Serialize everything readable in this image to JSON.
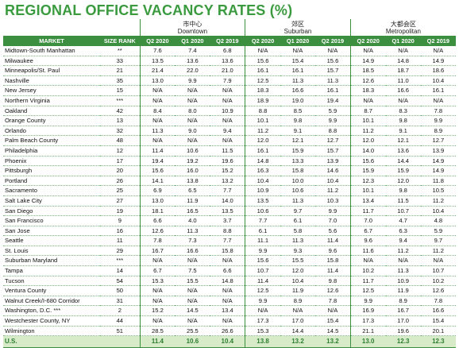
{
  "header": {
    "title": "REGIONAL OFFICE VACANCY RATES (%)"
  },
  "table": {
    "groups": [
      {
        "zh": "市中心",
        "en": "Downtown"
      },
      {
        "zh": "郊区",
        "en": "Suburban"
      },
      {
        "zh": "大都会区",
        "en": "Metropolitan"
      }
    ],
    "columns": [
      "MARKET",
      "SIZE RANK",
      "Q2 2020",
      "Q1 2020",
      "Q2 2019",
      "Q2 2020",
      "Q1 2020",
      "Q2 2019",
      "Q2 2020",
      "Q1 2020",
      "Q2 2019"
    ],
    "rows": [
      [
        "Midtown-South Manhattan",
        "**",
        "7.6",
        "7.4",
        "6.8",
        "N/A",
        "N/A",
        "N/A",
        "N/A",
        "N/A",
        "N/A"
      ],
      [
        "Milwaukee",
        "33",
        "13.5",
        "13.6",
        "13.6",
        "15.6",
        "15.4",
        "15.6",
        "14.9",
        "14.8",
        "14.9"
      ],
      [
        "Minneapolis/St. Paul",
        "21",
        "21.4",
        "22.0",
        "21.0",
        "16.1",
        "16.1",
        "15.7",
        "18.5",
        "18.7",
        "18.6"
      ],
      [
        "Nashville",
        "35",
        "13.0",
        "9.9",
        "7.9",
        "12.5",
        "11.3",
        "11.3",
        "12.6",
        "11.0",
        "10.4"
      ],
      [
        "New Jersey",
        "15",
        "N/A",
        "N/A",
        "N/A",
        "18.3",
        "16.6",
        "16.1",
        "18.3",
        "16.6",
        "16.1"
      ],
      [
        "Northern Virginia",
        "***",
        "N/A",
        "N/A",
        "N/A",
        "18.9",
        "19.0",
        "19.4",
        "N/A",
        "N/A",
        "N/A"
      ],
      [
        "Oakland",
        "42",
        "8.4",
        "8.0",
        "10.9",
        "8.8",
        "8.5",
        "5.9",
        "8.7",
        "8.3",
        "7.8"
      ],
      [
        "Orange County",
        "13",
        "N/A",
        "N/A",
        "N/A",
        "10.1",
        "9.8",
        "9.9",
        "10.1",
        "9.8",
        "9.9"
      ],
      [
        "Orlando",
        "32",
        "11.3",
        "9.0",
        "9.4",
        "11.2",
        "9.1",
        "8.8",
        "11.2",
        "9.1",
        "8.9"
      ],
      [
        "Palm Beach County",
        "48",
        "N/A",
        "N/A",
        "N/A",
        "12.0",
        "12.1",
        "12.7",
        "12.0",
        "12.1",
        "12.7"
      ],
      [
        "Philadelphia",
        "12",
        "11.4",
        "10.6",
        "11.5",
        "16.1",
        "15.9",
        "15.7",
        "14.0",
        "13.6",
        "13.9"
      ],
      [
        "Phoenix",
        "17",
        "19.4",
        "19.2",
        "19.6",
        "14.8",
        "13.3",
        "13.9",
        "15.6",
        "14.4",
        "14.9"
      ],
      [
        "Pittsburgh",
        "20",
        "15.6",
        "16.0",
        "15.2",
        "16.3",
        "15.8",
        "14.6",
        "15.9",
        "15.9",
        "14.9"
      ],
      [
        "Portland",
        "26",
        "14.1",
        "13.8",
        "13.2",
        "10.4",
        "10.0",
        "10.4",
        "12.3",
        "12.0",
        "11.8"
      ],
      [
        "Sacramento",
        "25",
        "6.9",
        "6.5",
        "7.7",
        "10.9",
        "10.6",
        "11.2",
        "10.1",
        "9.8",
        "10.5"
      ],
      [
        "Salt Lake City",
        "27",
        "13.0",
        "11.9",
        "14.0",
        "13.5",
        "11.3",
        "10.3",
        "13.4",
        "11.5",
        "11.2"
      ],
      [
        "San Diego",
        "19",
        "18.1",
        "16.5",
        "13.5",
        "10.6",
        "9.7",
        "9.9",
        "11.7",
        "10.7",
        "10.4"
      ],
      [
        "San Francisco",
        "9",
        "6.6",
        "4.0",
        "3.7",
        "7.7",
        "6.1",
        "7.0",
        "7.0",
        "4.7",
        "4.8"
      ],
      [
        "San Jose",
        "16",
        "12.6",
        "11.3",
        "8.8",
        "6.1",
        "5.8",
        "5.6",
        "6.7",
        "6.3",
        "5.9"
      ],
      [
        "Seattle",
        "11",
        "7.8",
        "7.3",
        "7.7",
        "11.1",
        "11.3",
        "11.4",
        "9.6",
        "9.4",
        "9.7"
      ],
      [
        "St. Louis",
        "29",
        "16.7",
        "16.6",
        "15.8",
        "9.9",
        "9.3",
        "9.6",
        "11.6",
        "11.2",
        "11.2"
      ],
      [
        "Suburban Maryland",
        "***",
        "N/A",
        "N/A",
        "N/A",
        "15.6",
        "15.5",
        "15.8",
        "N/A",
        "N/A",
        "N/A"
      ],
      [
        "Tampa",
        "14",
        "6.7",
        "7.5",
        "6.6",
        "10.7",
        "12.0",
        "11.4",
        "10.2",
        "11.3",
        "10.7"
      ],
      [
        "Tucson",
        "54",
        "15.3",
        "15.5",
        "14.8",
        "11.4",
        "10.4",
        "9.8",
        "11.7",
        "10.9",
        "10.2"
      ],
      [
        "Ventura County",
        "50",
        "N/A",
        "N/A",
        "N/A",
        "12.5",
        "11.9",
        "12.6",
        "12.5",
        "11.9",
        "12.6"
      ],
      [
        "Walnut Creek/I-680 Corridor",
        "31",
        "N/A",
        "N/A",
        "N/A",
        "9.9",
        "8.9",
        "7.8",
        "9.9",
        "8.9",
        "7.8"
      ],
      [
        "Washington, D.C. ***",
        "2",
        "15.2",
        "14.5",
        "13.4",
        "N/A",
        "N/A",
        "N/A",
        "16.9",
        "16.7",
        "16.6"
      ],
      [
        "Westchester County, NY",
        "44",
        "N/A",
        "N/A",
        "N/A",
        "17.3",
        "17.0",
        "15.4",
        "17.3",
        "17.0",
        "15.4"
      ],
      [
        "Wilmington",
        "51",
        "28.5",
        "25.5",
        "26.6",
        "15.3",
        "14.4",
        "14.5",
        "21.1",
        "19.6",
        "20.1"
      ]
    ],
    "total": [
      "U.S.",
      null,
      "11.4",
      "10.6",
      "10.4",
      "13.8",
      "13.2",
      "13.2",
      "13.0",
      "12.3",
      "12.3"
    ]
  }
}
